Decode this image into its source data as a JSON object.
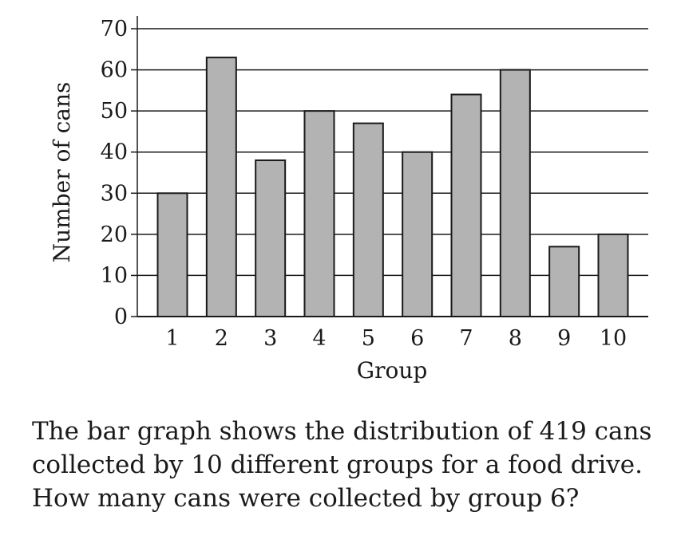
{
  "chart_data": {
    "type": "bar",
    "categories": [
      "1",
      "2",
      "3",
      "4",
      "5",
      "6",
      "7",
      "8",
      "9",
      "10"
    ],
    "values": [
      30,
      63,
      38,
      50,
      47,
      40,
      54,
      60,
      17,
      20
    ],
    "xlabel": "Group",
    "ylabel": "Number of cans",
    "ylim": [
      0,
      70
    ],
    "yticks": [
      0,
      10,
      20,
      30,
      40,
      50,
      60,
      70
    ],
    "grid": "horizontal",
    "bar_color": "#b3b3b3",
    "bar_edge_color": "#1a1a1a"
  },
  "question": {
    "lines": [
      "The bar graph shows the distribution of 419 cans",
      "collected by 10 different groups for a food drive.",
      "How many cans were collected by group 6?"
    ]
  }
}
